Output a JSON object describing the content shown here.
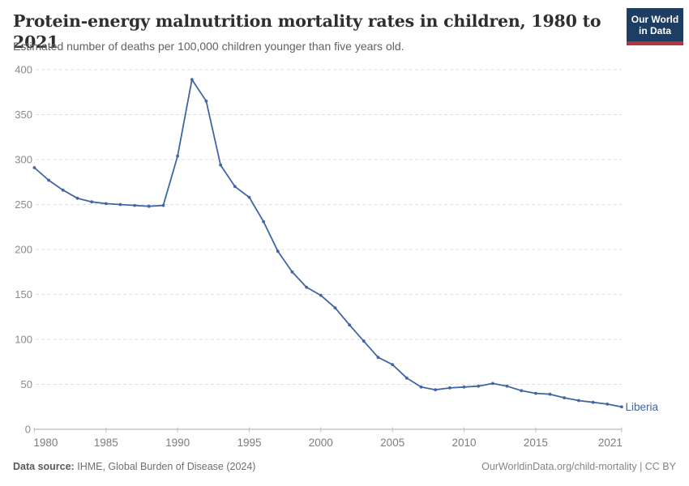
{
  "header": {
    "title": "Protein-energy malnutrition mortality rates in children, 1980 to 2021",
    "subtitle": "Estimated number of deaths per 100,000 children younger than five years old.",
    "logo": {
      "line1": "Our World",
      "line2": "in Data",
      "bg_color": "#1d3d63",
      "accent_color": "#b2343c"
    }
  },
  "chart_data": {
    "type": "line",
    "title": "Protein-energy malnutrition mortality rates in children, 1980 to 2021",
    "xlabel": "",
    "ylabel": "Estimated number of deaths per 100,000 children younger than five years old",
    "xlim": [
      1980,
      2021
    ],
    "ylim": [
      0,
      400
    ],
    "grid": true,
    "legend_position": "end-of-line",
    "x_ticks": [
      1980,
      1985,
      1990,
      1995,
      2000,
      2005,
      2010,
      2015,
      2021
    ],
    "y_ticks": [
      0,
      50,
      100,
      150,
      200,
      250,
      300,
      350,
      400
    ],
    "x": [
      1980,
      1981,
      1982,
      1983,
      1984,
      1985,
      1986,
      1987,
      1988,
      1989,
      1990,
      1991,
      1992,
      1993,
      1994,
      1995,
      1996,
      1997,
      1998,
      1999,
      2000,
      2001,
      2002,
      2003,
      2004,
      2005,
      2006,
      2007,
      2008,
      2009,
      2010,
      2011,
      2012,
      2013,
      2014,
      2015,
      2016,
      2017,
      2018,
      2019,
      2020,
      2021
    ],
    "series": [
      {
        "name": "Liberia",
        "color": "#4165a5",
        "values": [
          291,
          277,
          266,
          257,
          253,
          251,
          250,
          249,
          248,
          249,
          304,
          389,
          365,
          294,
          270,
          258,
          231,
          198,
          175,
          158,
          149,
          135,
          116,
          98,
          80,
          72,
          57,
          47,
          44,
          46,
          47,
          48,
          51,
          48,
          43,
          40,
          39,
          35,
          32,
          30,
          28,
          25
        ]
      }
    ]
  },
  "footer": {
    "source_label": "Data source:",
    "source_value": "IHME, Global Burden of Disease (2024)",
    "credit": "OurWorldinData.org/child-mortality | CC BY"
  }
}
